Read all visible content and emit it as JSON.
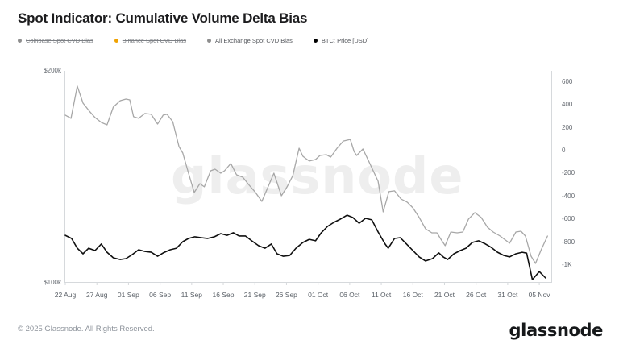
{
  "header": {
    "title": "Spot Indicator: Cumulative Volume Delta Bias"
  },
  "legend": {
    "items": [
      {
        "label": "Coinbase Spot CVD Bias",
        "color": "#8e8e8e",
        "strikethrough": true
      },
      {
        "label": "Binance Spot CVD Bias",
        "color": "#f0a202",
        "strikethrough": true
      },
      {
        "label": "All Exchange Spot CVD Bias",
        "color": "#8e8e8e",
        "strikethrough": false
      },
      {
        "label": "BTC: Price [USD]",
        "color": "#000000",
        "strikethrough": false
      }
    ]
  },
  "watermark": {
    "text": "glassnode"
  },
  "footer": {
    "copyright": "© 2025 Glassnode. All Rights Reserved.",
    "logo": "glassnode"
  },
  "chart_data": {
    "type": "line",
    "title": "Spot Indicator: Cumulative Volume Delta Bias",
    "grid": "off",
    "legend_position": "top-left",
    "x_axis": {
      "tick_labels": [
        "22 Aug",
        "27 Aug",
        "01 Sep",
        "06 Sep",
        "11 Sep",
        "16 Sep",
        "21 Sep",
        "26 Sep",
        "01 Oct",
        "06 Oct",
        "11 Oct",
        "16 Oct",
        "21 Oct",
        "26 Oct",
        "31 Oct",
        "05 Nov"
      ],
      "tick_days": [
        0,
        5,
        10,
        15,
        20,
        25,
        30,
        35,
        40,
        45,
        50,
        55,
        60,
        65,
        70,
        75
      ],
      "day_domain": [
        0,
        76.9
      ]
    },
    "left_axis": {
      "unit": "USD",
      "tick_labels": [
        "$200k",
        "$100k"
      ],
      "tick_values_k": [
        200,
        100
      ],
      "plot_domain_k": [
        200,
        100
      ]
    },
    "right_axis": {
      "unit": "CVD bias",
      "tick_labels": [
        "600",
        "400",
        "200",
        "0",
        "-200",
        "-400",
        "-600",
        "-800",
        "-1K"
      ],
      "tick_values": [
        600,
        400,
        200,
        0,
        -200,
        -400,
        -600,
        -800,
        -1000
      ],
      "plot_domain": [
        696,
        -1153
      ]
    },
    "series": [
      {
        "name": "All Exchange Spot CVD Bias",
        "axis": "right",
        "color": "#a7a7a7",
        "points": [
          [
            0,
            310
          ],
          [
            0.9,
            282
          ],
          [
            1.9,
            563
          ],
          [
            2.8,
            415
          ],
          [
            3.8,
            345
          ],
          [
            4.7,
            289
          ],
          [
            5.7,
            246
          ],
          [
            6.6,
            225
          ],
          [
            7.6,
            380
          ],
          [
            8.7,
            436
          ],
          [
            9.6,
            450
          ],
          [
            10.2,
            443
          ],
          [
            10.8,
            296
          ],
          [
            11.6,
            282
          ],
          [
            12.6,
            324
          ],
          [
            13.6,
            317
          ],
          [
            14.6,
            232
          ],
          [
            15.5,
            310
          ],
          [
            16.1,
            317
          ],
          [
            17,
            253
          ],
          [
            18,
            35
          ],
          [
            18.6,
            -21
          ],
          [
            19.5,
            -197
          ],
          [
            20.4,
            -365
          ],
          [
            21.3,
            -288
          ],
          [
            22,
            -316
          ],
          [
            23,
            -176
          ],
          [
            23.7,
            -162
          ],
          [
            24.6,
            -197
          ],
          [
            25.2,
            -176
          ],
          [
            26.2,
            -112
          ],
          [
            27.1,
            -211
          ],
          [
            28.1,
            -232
          ],
          [
            29,
            -295
          ],
          [
            30,
            -358
          ],
          [
            31.1,
            -443
          ],
          [
            32.3,
            -288
          ],
          [
            33,
            -197
          ],
          [
            34.2,
            -394
          ],
          [
            35.1,
            -316
          ],
          [
            36,
            -218
          ],
          [
            37,
            21
          ],
          [
            37.6,
            -49
          ],
          [
            38.6,
            -91
          ],
          [
            39.6,
            -77
          ],
          [
            40.3,
            -42
          ],
          [
            41.3,
            -35
          ],
          [
            42,
            -56
          ],
          [
            43,
            21
          ],
          [
            44,
            84
          ],
          [
            45.1,
            98
          ],
          [
            45.7,
            -7
          ],
          [
            46.1,
            -42
          ],
          [
            47.1,
            14
          ],
          [
            48.1,
            -103
          ],
          [
            49.5,
            -267
          ],
          [
            50.3,
            -534
          ],
          [
            51.2,
            -358
          ],
          [
            52.1,
            -351
          ],
          [
            53.1,
            -421
          ],
          [
            54.1,
            -449
          ],
          [
            55,
            -499
          ],
          [
            56,
            -583
          ],
          [
            57,
            -682
          ],
          [
            58,
            -717
          ],
          [
            58.8,
            -717
          ],
          [
            59.5,
            -780
          ],
          [
            60.1,
            -829
          ],
          [
            61,
            -710
          ],
          [
            62,
            -717
          ],
          [
            62.9,
            -710
          ],
          [
            63.8,
            -597
          ],
          [
            64.8,
            -541
          ],
          [
            65.8,
            -583
          ],
          [
            66.8,
            -668
          ],
          [
            67.7,
            -710
          ],
          [
            68.8,
            -745
          ],
          [
            69.8,
            -787
          ],
          [
            70.3,
            -808
          ],
          [
            71.3,
            -710
          ],
          [
            72.1,
            -703
          ],
          [
            72.8,
            -745
          ],
          [
            73.7,
            -921
          ],
          [
            74.4,
            -984
          ],
          [
            75.3,
            -864
          ],
          [
            76.3,
            -745
          ]
        ]
      },
      {
        "name": "BTC: Price [USD]",
        "axis": "left",
        "unit": "k USD",
        "color": "#101010",
        "points": [
          [
            0,
            122.4
          ],
          [
            1,
            120.9
          ],
          [
            1.9,
            116.3
          ],
          [
            2.8,
            113.7
          ],
          [
            3.7,
            116.3
          ],
          [
            4.7,
            115.2
          ],
          [
            5.7,
            118.3
          ],
          [
            6.6,
            114.4
          ],
          [
            7.6,
            111.8
          ],
          [
            8.7,
            111
          ],
          [
            9.6,
            111.4
          ],
          [
            10.6,
            113.3
          ],
          [
            11.6,
            115.6
          ],
          [
            12.6,
            114.8
          ],
          [
            13.6,
            114.4
          ],
          [
            14.6,
            112.5
          ],
          [
            15.5,
            114.1
          ],
          [
            16.6,
            115.6
          ],
          [
            17.6,
            116.3
          ],
          [
            18.6,
            119.4
          ],
          [
            19.5,
            120.9
          ],
          [
            20.5,
            121.7
          ],
          [
            21.5,
            121.3
          ],
          [
            22.5,
            120.9
          ],
          [
            23.6,
            121.7
          ],
          [
            24.6,
            123.2
          ],
          [
            25.6,
            122.4
          ],
          [
            26.6,
            123.6
          ],
          [
            27.5,
            122.1
          ],
          [
            28.5,
            122.1
          ],
          [
            29.5,
            119.8
          ],
          [
            30.6,
            117.5
          ],
          [
            31.6,
            116.3
          ],
          [
            32.6,
            118.3
          ],
          [
            33.5,
            113.7
          ],
          [
            34.5,
            112.5
          ],
          [
            35.5,
            112.9
          ],
          [
            36.5,
            116.3
          ],
          [
            37.6,
            119
          ],
          [
            38.6,
            120.5
          ],
          [
            39.6,
            119.8
          ],
          [
            40.5,
            123.6
          ],
          [
            41.5,
            126.6
          ],
          [
            42.5,
            128.5
          ],
          [
            43.5,
            130
          ],
          [
            44.6,
            131.9
          ],
          [
            45.5,
            130.8
          ],
          [
            46.5,
            128.1
          ],
          [
            47.5,
            130.4
          ],
          [
            48.5,
            129.7
          ],
          [
            49.5,
            124
          ],
          [
            50.6,
            118.3
          ],
          [
            51.1,
            116.3
          ],
          [
            52.1,
            120.9
          ],
          [
            53,
            121.3
          ],
          [
            54,
            118.3
          ],
          [
            55,
            115.2
          ],
          [
            56,
            112.2
          ],
          [
            57,
            110.3
          ],
          [
            58.1,
            111.4
          ],
          [
            59.1,
            114.1
          ],
          [
            59.8,
            112.2
          ],
          [
            60.5,
            111
          ],
          [
            61.5,
            113.7
          ],
          [
            62.5,
            115.2
          ],
          [
            63.4,
            116.3
          ],
          [
            64.4,
            119
          ],
          [
            65.4,
            119.8
          ],
          [
            66.3,
            118.6
          ],
          [
            67.4,
            116.7
          ],
          [
            68.4,
            114.4
          ],
          [
            69.4,
            112.9
          ],
          [
            70.3,
            112.2
          ],
          [
            71.3,
            113.7
          ],
          [
            72.3,
            114.4
          ],
          [
            73,
            114
          ],
          [
            73.9,
            101.5
          ],
          [
            75,
            105.3
          ],
          [
            76,
            102.3
          ]
        ]
      }
    ]
  }
}
